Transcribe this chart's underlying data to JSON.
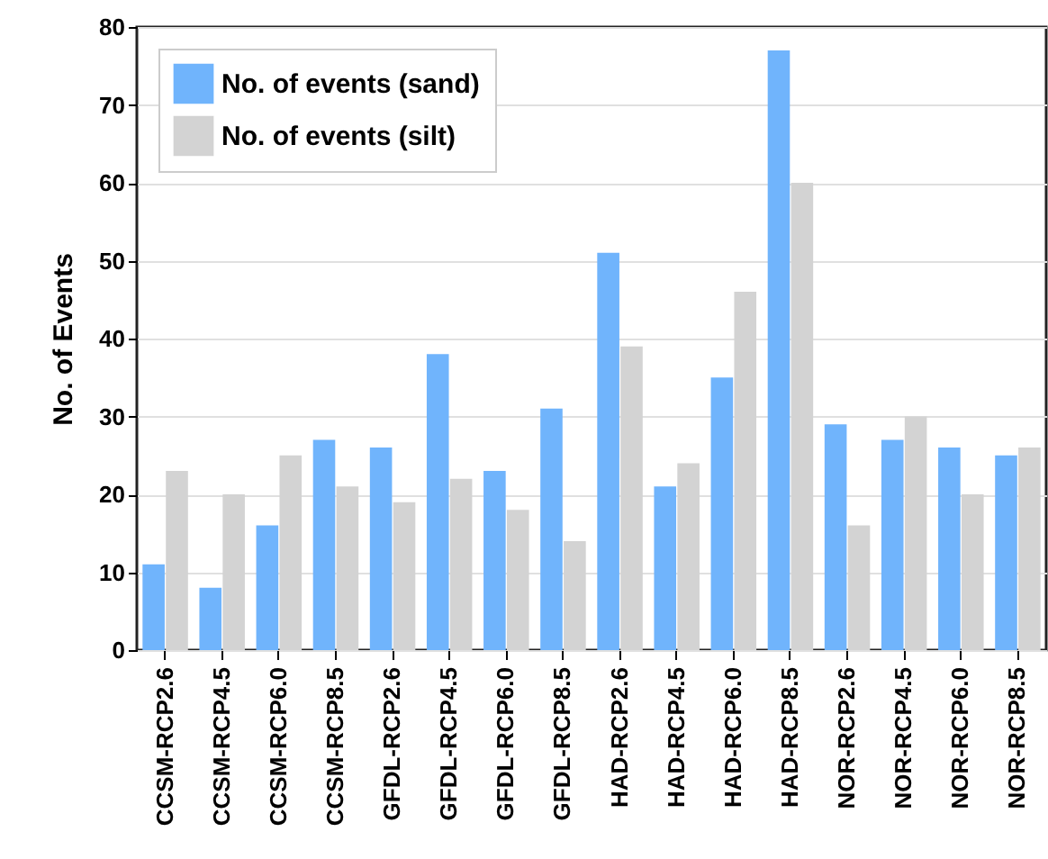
{
  "chart_data": {
    "type": "bar",
    "ylabel": "No. of Events",
    "categories": [
      "CCSM-RCP2.6",
      "CCSM-RCP4.5",
      "CCSM-RCP6.0",
      "CCSM-RCP8.5",
      "GFDL-RCP2.6",
      "GFDL-RCP4.5",
      "GFDL-RCP6.0",
      "GFDL-RCP8.5",
      "HAD-RCP2.6",
      "HAD-RCP4.5",
      "HAD-RCP6.0",
      "HAD-RCP8.5",
      "NOR-RCP2.6",
      "NOR-RCP4.5",
      "NOR-RCP6.0",
      "NOR-RCP8.5"
    ],
    "series": [
      {
        "name": "No. of events (sand)",
        "color": "#70b4fc",
        "values": [
          11,
          8,
          16,
          27,
          26,
          38,
          23,
          31,
          51,
          21,
          35,
          77,
          29,
          27,
          26,
          25
        ]
      },
      {
        "name": "No. of events (silt)",
        "color": "#d3d3d3",
        "values": [
          23,
          20,
          25,
          21,
          19,
          22,
          18,
          14,
          39,
          24,
          46,
          60,
          16,
          30,
          20,
          26
        ]
      }
    ],
    "ylim": [
      0,
      80
    ],
    "yticks": [
      0,
      10,
      20,
      30,
      40,
      50,
      60,
      70,
      80
    ],
    "grid": "y",
    "legend": "top left"
  }
}
